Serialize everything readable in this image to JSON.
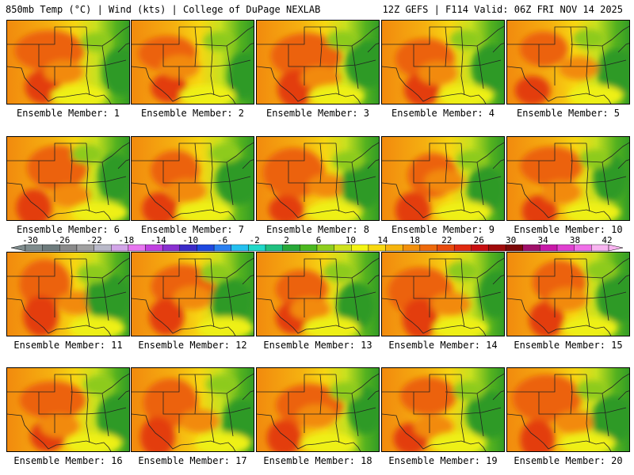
{
  "header": {
    "left": "850mb Temp (°C) | Wind (kts) | College of DuPage NEXLAB",
    "right": "12Z GEFS | F114 Valid: 06Z FRI NOV 14 2025"
  },
  "members": [
    "Ensemble Member: 1",
    "Ensemble Member: 2",
    "Ensemble Member: 3",
    "Ensemble Member: 4",
    "Ensemble Member: 5",
    "Ensemble Member: 6",
    "Ensemble Member: 7",
    "Ensemble Member: 8",
    "Ensemble Member: 9",
    "Ensemble Member: 10",
    "Ensemble Member: 11",
    "Ensemble Member: 12",
    "Ensemble Member: 13",
    "Ensemble Member: 14",
    "Ensemble Member: 15",
    "Ensemble Member: 16",
    "Ensemble Member: 17",
    "Ensemble Member: 18",
    "Ensemble Member: 19",
    "Ensemble Member: 20"
  ],
  "colorbar": {
    "labels": [
      "-30",
      "-26",
      "-22",
      "-18",
      "-14",
      "-10",
      "-6",
      "-2",
      "2",
      "6",
      "10",
      "14",
      "18",
      "22",
      "26",
      "30",
      "34",
      "38",
      "42"
    ],
    "colors": [
      "#7f8c8d",
      "#6d7b7c",
      "#8a8a8a",
      "#a0a0a0",
      "#b9b9c9",
      "#d2a5e8",
      "#e876f0",
      "#c040e0",
      "#8a30d0",
      "#3b2bc8",
      "#1e48e0",
      "#2a80f0",
      "#25c0f0",
      "#20d8c8",
      "#20c080",
      "#28a838",
      "#4cb820",
      "#8fce1e",
      "#cfe21e",
      "#f4f414",
      "#f8d810",
      "#f6b40e",
      "#f2900c",
      "#ee6a0c",
      "#e84a0c",
      "#e02a10",
      "#c80e10",
      "#a00a0a",
      "#7c0808",
      "#a0106a",
      "#c818a8",
      "#e040d0",
      "#f070e8",
      "#f8b4f0"
    ],
    "warm": [
      "#2f9a26",
      "#55b21f",
      "#8dcb1e",
      "#c8e01f",
      "#eef018",
      "#f7d612",
      "#f5b010",
      "#f28a0e",
      "#ec620d",
      "#e33c0f"
    ]
  },
  "icons": {
    "map": "weather-map-icon"
  }
}
